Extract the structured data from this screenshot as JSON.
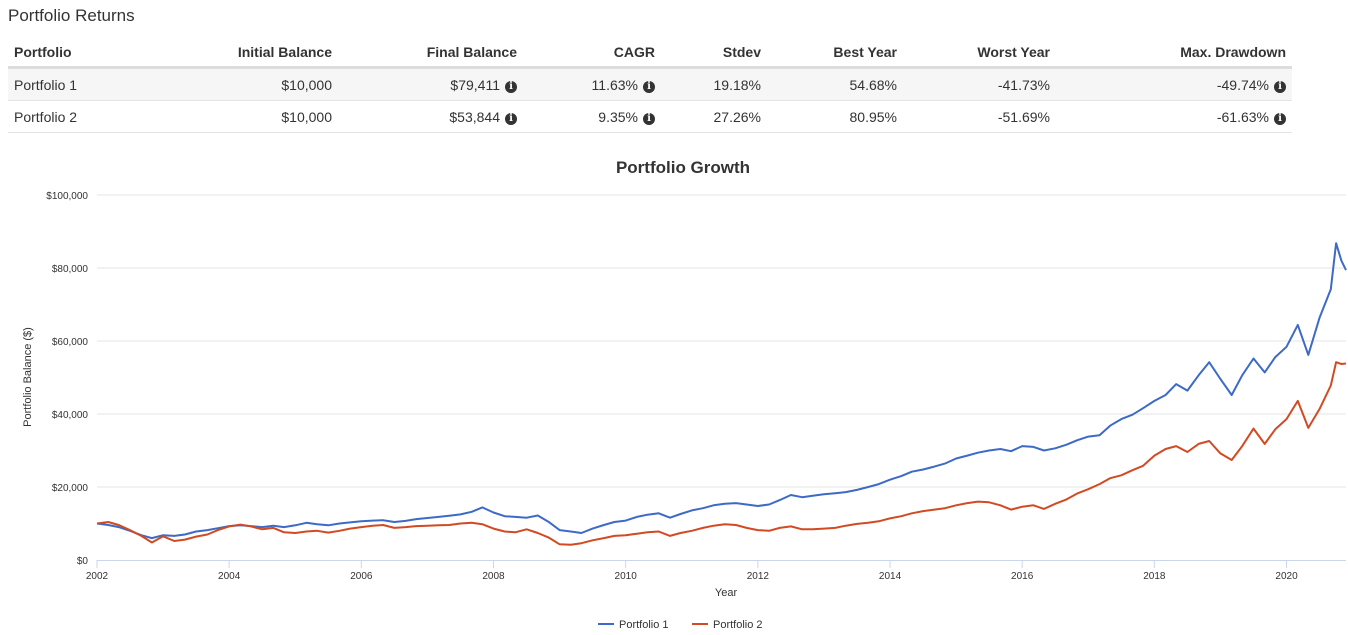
{
  "section_title": "Portfolio Returns",
  "table": {
    "headers": [
      "Portfolio",
      "Initial Balance",
      "Final Balance",
      "CAGR",
      "Stdev",
      "Best Year",
      "Worst Year",
      "Max. Drawdown"
    ],
    "rows": [
      {
        "name": "Portfolio 1",
        "initial": "$10,000",
        "final": "$79,411",
        "cagr": "11.63%",
        "stdev": "19.18%",
        "best": "54.68%",
        "worst": "-41.73%",
        "drawdown": "-49.74%"
      },
      {
        "name": "Portfolio 2",
        "initial": "$10,000",
        "final": "$53,844",
        "cagr": "9.35%",
        "stdev": "27.26%",
        "best": "80.95%",
        "worst": "-51.69%",
        "drawdown": "-61.63%"
      }
    ],
    "info_icon": "info-circle-icon"
  },
  "chart_data": {
    "type": "line",
    "title": "Portfolio Growth",
    "xlabel": "Year",
    "ylabel": "Portfolio Balance ($)",
    "xlim": [
      2002,
      2020.9
    ],
    "ylim": [
      0,
      100000
    ],
    "x_ticks": [
      2002,
      2004,
      2006,
      2008,
      2010,
      2012,
      2014,
      2016,
      2018,
      2020
    ],
    "y_ticks": [
      0,
      20000,
      40000,
      60000,
      80000,
      100000
    ],
    "y_tick_labels": [
      "$0",
      "$20,000",
      "$40,000",
      "$60,000",
      "$80,000",
      "$100,000"
    ],
    "grid": "horizontal",
    "legend": "bottom-center",
    "series": [
      {
        "name": "Portfolio 1",
        "color": "#3c6ac6",
        "points": [
          [
            2002.0,
            10000
          ],
          [
            2002.17,
            9600
          ],
          [
            2002.33,
            9000
          ],
          [
            2002.5,
            8000
          ],
          [
            2002.67,
            6800
          ],
          [
            2002.83,
            6000
          ],
          [
            2003.0,
            6800
          ],
          [
            2003.17,
            6600
          ],
          [
            2003.33,
            7000
          ],
          [
            2003.5,
            7800
          ],
          [
            2003.67,
            8200
          ],
          [
            2003.83,
            8700
          ],
          [
            2004.0,
            9300
          ],
          [
            2004.17,
            9500
          ],
          [
            2004.33,
            9300
          ],
          [
            2004.5,
            9000
          ],
          [
            2004.67,
            9400
          ],
          [
            2004.83,
            9000
          ],
          [
            2005.0,
            9500
          ],
          [
            2005.17,
            10200
          ],
          [
            2005.33,
            9800
          ],
          [
            2005.5,
            9500
          ],
          [
            2005.67,
            10000
          ],
          [
            2005.83,
            10300
          ],
          [
            2006.0,
            10600
          ],
          [
            2006.17,
            10800
          ],
          [
            2006.33,
            10900
          ],
          [
            2006.5,
            10400
          ],
          [
            2006.67,
            10700
          ],
          [
            2006.83,
            11200
          ],
          [
            2007.0,
            11500
          ],
          [
            2007.17,
            11800
          ],
          [
            2007.33,
            12100
          ],
          [
            2007.5,
            12500
          ],
          [
            2007.67,
            13200
          ],
          [
            2007.83,
            14400
          ],
          [
            2008.0,
            13000
          ],
          [
            2008.17,
            12000
          ],
          [
            2008.33,
            11800
          ],
          [
            2008.5,
            11600
          ],
          [
            2008.67,
            12200
          ],
          [
            2008.83,
            10500
          ],
          [
            2009.0,
            8200
          ],
          [
            2009.17,
            7800
          ],
          [
            2009.33,
            7400
          ],
          [
            2009.5,
            8600
          ],
          [
            2009.67,
            9600
          ],
          [
            2009.83,
            10400
          ],
          [
            2010.0,
            10800
          ],
          [
            2010.17,
            11800
          ],
          [
            2010.33,
            12400
          ],
          [
            2010.5,
            12800
          ],
          [
            2010.67,
            11600
          ],
          [
            2010.83,
            12600
          ],
          [
            2011.0,
            13600
          ],
          [
            2011.17,
            14200
          ],
          [
            2011.33,
            15000
          ],
          [
            2011.5,
            15400
          ],
          [
            2011.67,
            15600
          ],
          [
            2011.83,
            15200
          ],
          [
            2012.0,
            14800
          ],
          [
            2012.17,
            15200
          ],
          [
            2012.33,
            16400
          ],
          [
            2012.5,
            17800
          ],
          [
            2012.67,
            17200
          ],
          [
            2012.83,
            17600
          ],
          [
            2013.0,
            18000
          ],
          [
            2013.17,
            18300
          ],
          [
            2013.33,
            18600
          ],
          [
            2013.5,
            19200
          ],
          [
            2013.67,
            20000
          ],
          [
            2013.83,
            20800
          ],
          [
            2014.0,
            22000
          ],
          [
            2014.17,
            23000
          ],
          [
            2014.33,
            24200
          ],
          [
            2014.5,
            24800
          ],
          [
            2014.67,
            25600
          ],
          [
            2014.83,
            26400
          ],
          [
            2015.0,
            27800
          ],
          [
            2015.17,
            28600
          ],
          [
            2015.33,
            29400
          ],
          [
            2015.5,
            30000
          ],
          [
            2015.67,
            30400
          ],
          [
            2015.83,
            29800
          ],
          [
            2016.0,
            31200
          ],
          [
            2016.17,
            31000
          ],
          [
            2016.33,
            30000
          ],
          [
            2016.5,
            30600
          ],
          [
            2016.67,
            31600
          ],
          [
            2016.83,
            32800
          ],
          [
            2017.0,
            33800
          ],
          [
            2017.17,
            34200
          ],
          [
            2017.33,
            36800
          ],
          [
            2017.5,
            38600
          ],
          [
            2017.67,
            39800
          ],
          [
            2017.83,
            41600
          ],
          [
            2018.0,
            43600
          ],
          [
            2018.17,
            45200
          ],
          [
            2018.33,
            48200
          ],
          [
            2018.5,
            46400
          ],
          [
            2018.67,
            50600
          ],
          [
            2018.83,
            54200
          ],
          [
            2019.0,
            49600
          ],
          [
            2019.17,
            45200
          ],
          [
            2019.33,
            50600
          ],
          [
            2019.5,
            55200
          ],
          [
            2019.67,
            51400
          ],
          [
            2019.83,
            55600
          ],
          [
            2020.0,
            58400
          ],
          [
            2020.17,
            64400
          ],
          [
            2020.33,
            56200
          ],
          [
            2020.5,
            66400
          ],
          [
            2020.67,
            74200
          ],
          [
            2020.75,
            86800
          ],
          [
            2020.83,
            82000
          ],
          [
            2020.9,
            79411
          ]
        ]
      },
      {
        "name": "Portfolio 2",
        "color": "#d24a22",
        "points": [
          [
            2002.0,
            10000
          ],
          [
            2002.17,
            10400
          ],
          [
            2002.33,
            9600
          ],
          [
            2002.5,
            8200
          ],
          [
            2002.67,
            6600
          ],
          [
            2002.83,
            4800
          ],
          [
            2003.0,
            6500
          ],
          [
            2003.17,
            5200
          ],
          [
            2003.33,
            5600
          ],
          [
            2003.5,
            6400
          ],
          [
            2003.67,
            7000
          ],
          [
            2003.83,
            8200
          ],
          [
            2004.0,
            9200
          ],
          [
            2004.17,
            9700
          ],
          [
            2004.33,
            9200
          ],
          [
            2004.5,
            8400
          ],
          [
            2004.67,
            8800
          ],
          [
            2004.83,
            7600
          ],
          [
            2005.0,
            7400
          ],
          [
            2005.17,
            7800
          ],
          [
            2005.33,
            8000
          ],
          [
            2005.5,
            7500
          ],
          [
            2005.67,
            8000
          ],
          [
            2005.83,
            8600
          ],
          [
            2006.0,
            9000
          ],
          [
            2006.17,
            9400
          ],
          [
            2006.33,
            9600
          ],
          [
            2006.5,
            8800
          ],
          [
            2006.67,
            9000
          ],
          [
            2006.83,
            9300
          ],
          [
            2007.0,
            9400
          ],
          [
            2007.17,
            9500
          ],
          [
            2007.33,
            9600
          ],
          [
            2007.5,
            10000
          ],
          [
            2007.67,
            10200
          ],
          [
            2007.83,
            9800
          ],
          [
            2008.0,
            8600
          ],
          [
            2008.17,
            7800
          ],
          [
            2008.33,
            7600
          ],
          [
            2008.5,
            8400
          ],
          [
            2008.67,
            7400
          ],
          [
            2008.83,
            6200
          ],
          [
            2009.0,
            4300
          ],
          [
            2009.17,
            4200
          ],
          [
            2009.33,
            4600
          ],
          [
            2009.5,
            5400
          ],
          [
            2009.67,
            6000
          ],
          [
            2009.83,
            6600
          ],
          [
            2010.0,
            6800
          ],
          [
            2010.17,
            7200
          ],
          [
            2010.33,
            7600
          ],
          [
            2010.5,
            7800
          ],
          [
            2010.67,
            6600
          ],
          [
            2010.83,
            7400
          ],
          [
            2011.0,
            8000
          ],
          [
            2011.17,
            8800
          ],
          [
            2011.33,
            9400
          ],
          [
            2011.5,
            9800
          ],
          [
            2011.67,
            9600
          ],
          [
            2011.83,
            8800
          ],
          [
            2012.0,
            8200
          ],
          [
            2012.17,
            8000
          ],
          [
            2012.33,
            8800
          ],
          [
            2012.5,
            9200
          ],
          [
            2012.67,
            8400
          ],
          [
            2012.83,
            8400
          ],
          [
            2013.0,
            8600
          ],
          [
            2013.17,
            8800
          ],
          [
            2013.33,
            9400
          ],
          [
            2013.5,
            9900
          ],
          [
            2013.67,
            10200
          ],
          [
            2013.83,
            10600
          ],
          [
            2014.0,
            11400
          ],
          [
            2014.17,
            12000
          ],
          [
            2014.33,
            12800
          ],
          [
            2014.5,
            13400
          ],
          [
            2014.67,
            13800
          ],
          [
            2014.83,
            14200
          ],
          [
            2015.0,
            15000
          ],
          [
            2015.17,
            15600
          ],
          [
            2015.33,
            16000
          ],
          [
            2015.5,
            15800
          ],
          [
            2015.67,
            15000
          ],
          [
            2015.83,
            13800
          ],
          [
            2016.0,
            14600
          ],
          [
            2016.17,
            15000
          ],
          [
            2016.33,
            14000
          ],
          [
            2016.5,
            15400
          ],
          [
            2016.67,
            16600
          ],
          [
            2016.83,
            18200
          ],
          [
            2017.0,
            19400
          ],
          [
            2017.17,
            20800
          ],
          [
            2017.33,
            22400
          ],
          [
            2017.5,
            23200
          ],
          [
            2017.67,
            24600
          ],
          [
            2017.83,
            25800
          ],
          [
            2018.0,
            28600
          ],
          [
            2018.17,
            30400
          ],
          [
            2018.33,
            31200
          ],
          [
            2018.5,
            29600
          ],
          [
            2018.67,
            31800
          ],
          [
            2018.83,
            32600
          ],
          [
            2019.0,
            29200
          ],
          [
            2019.17,
            27400
          ],
          [
            2019.33,
            31200
          ],
          [
            2019.5,
            36000
          ],
          [
            2019.67,
            31800
          ],
          [
            2019.83,
            35800
          ],
          [
            2020.0,
            38600
          ],
          [
            2020.17,
            43600
          ],
          [
            2020.33,
            36200
          ],
          [
            2020.5,
            41400
          ],
          [
            2020.67,
            47800
          ],
          [
            2020.75,
            54200
          ],
          [
            2020.83,
            53700
          ],
          [
            2020.9,
            53844
          ]
        ]
      }
    ]
  }
}
